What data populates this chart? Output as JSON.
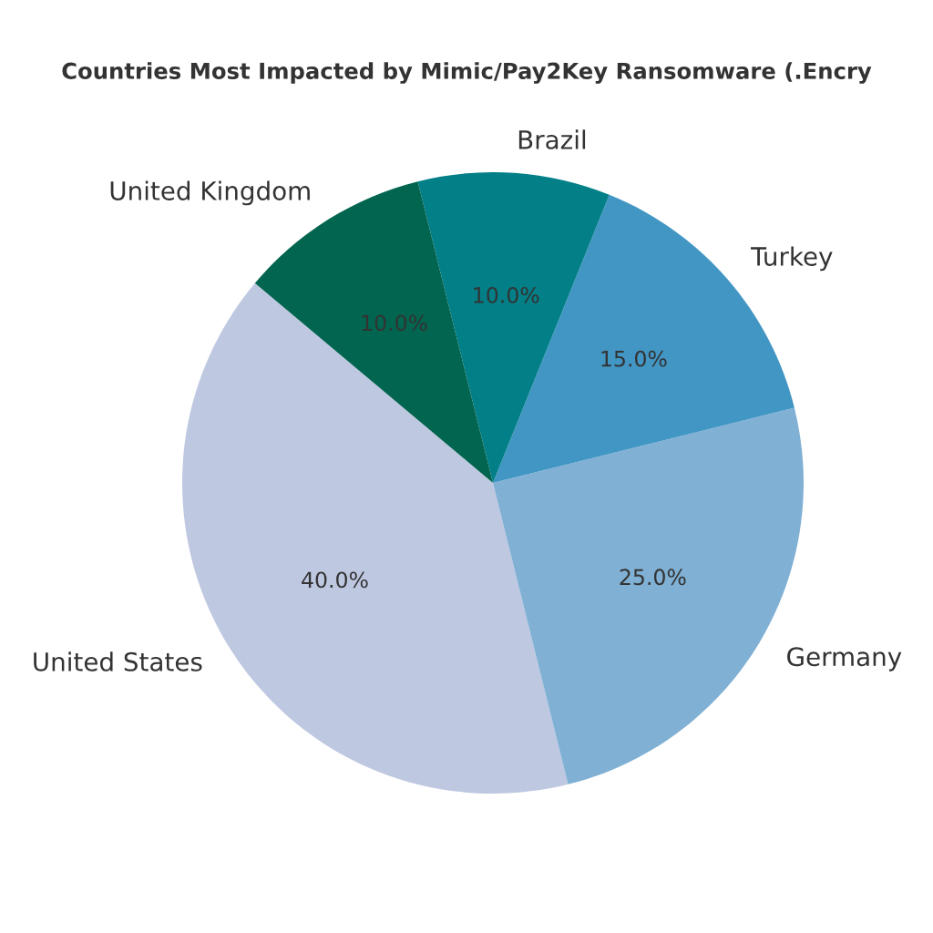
{
  "chart_data": {
    "type": "pie",
    "title": "Countries Most Impacted by Mimic/Pay2Key Ransomware (.Encry",
    "categories": [
      "United States",
      "Germany",
      "Turkey",
      "Brazil",
      "United Kingdom"
    ],
    "values": [
      40,
      25,
      15,
      10,
      10
    ],
    "value_labels": [
      "40.0%",
      "25.0%",
      "15.0%",
      "10.0%",
      "10.0%"
    ],
    "colors": [
      "#bec8e1",
      "#80b0d4",
      "#4296c4",
      "#037f88",
      "#02654f"
    ]
  }
}
